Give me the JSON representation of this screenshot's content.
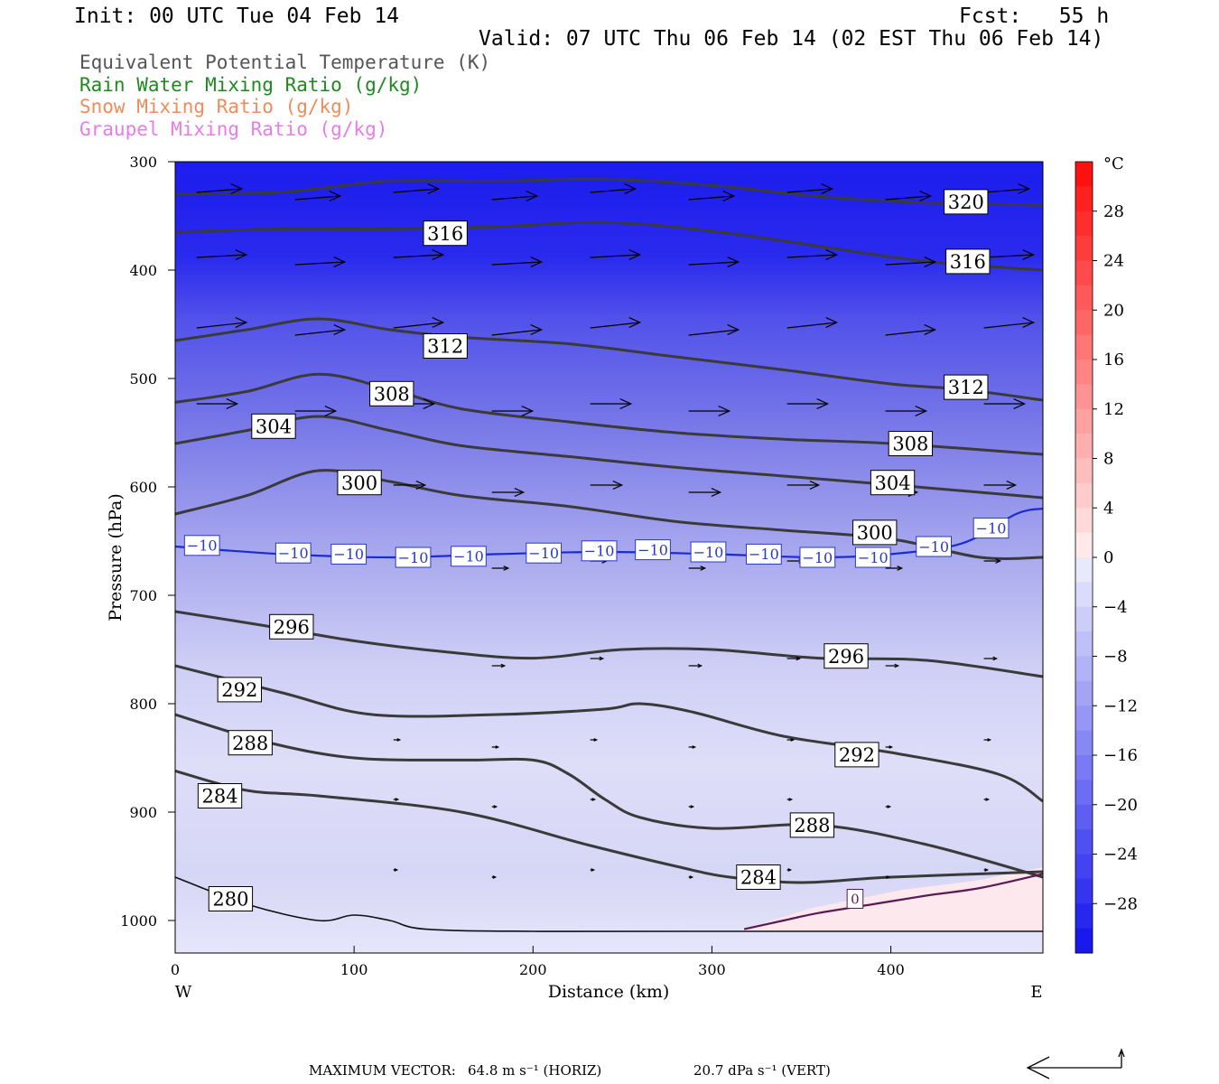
{
  "header": {
    "init": "Init: 00 UTC Tue 04 Feb 14",
    "fcst": "Fcst:   55 h",
    "valid": "Valid: 07 UTC Thu 06 Feb 14 (02 EST Thu 06 Feb 14)"
  },
  "legend": {
    "items": [
      {
        "text": "Equivalent Potential Temperature (K)",
        "color": "#555555"
      },
      {
        "text": "Rain Water Mixing Ratio (g/kg)",
        "color": "#1e8a1e"
      },
      {
        "text": "Snow Mixing Ratio (g/kg)",
        "color": "#f08c5a"
      },
      {
        "text": "Graupel Mixing Ratio (g/kg)",
        "color": "#e87ce8"
      }
    ]
  },
  "footer": {
    "max_vector_label": "MAXIMUM VECTOR:",
    "horiz": "64.8 m s⁻¹ (HORIZ)",
    "vert": "20.7 dPa s⁻¹ (VERT)"
  },
  "chart_data": {
    "type": "contour cross-section",
    "xlabel": "Distance (km)",
    "ylabel": "Pressure (hPa)",
    "xlim": [
      0,
      485
    ],
    "ylim": [
      1030,
      300
    ],
    "x_ticks": [
      0,
      100,
      200,
      300,
      400
    ],
    "y_ticks": [
      300,
      400,
      500,
      600,
      700,
      800,
      900,
      1000
    ],
    "x_left_label": "W",
    "x_right_label": "E",
    "colorbar": {
      "unit": "°C",
      "tick_values": [
        28,
        24,
        20,
        16,
        12,
        8,
        4,
        0,
        -4,
        -8,
        -12,
        -16,
        -20,
        -24,
        -28
      ],
      "tick_labels": [
        "28",
        "24",
        "20",
        "16",
        "12",
        "8",
        "4",
        "0",
        "−4",
        "−8",
        "−12",
        "−16",
        "−20",
        "−24",
        "−28"
      ],
      "range": [
        -32,
        32
      ]
    },
    "theta_e_contours": [
      {
        "value": 320,
        "label": "320",
        "points": [
          [
            0,
            330
          ],
          [
            60,
            328
          ],
          [
            120,
            318
          ],
          [
            180,
            318
          ],
          [
            240,
            316
          ],
          [
            300,
            322
          ],
          [
            360,
            332
          ],
          [
            420,
            338
          ],
          [
            485,
            340
          ]
        ],
        "labels_at": [
          [
            442,
            337
          ]
        ]
      },
      {
        "value": 316,
        "label": "316",
        "points": [
          [
            0,
            365
          ],
          [
            60,
            362
          ],
          [
            120,
            362
          ],
          [
            180,
            360
          ],
          [
            240,
            356
          ],
          [
            300,
            364
          ],
          [
            360,
            378
          ],
          [
            420,
            392
          ],
          [
            485,
            400
          ]
        ],
        "labels_at": [
          [
            151,
            366
          ],
          [
            443,
            392
          ]
        ]
      },
      {
        "value": 312,
        "label": "312",
        "points": [
          [
            0,
            465
          ],
          [
            40,
            455
          ],
          [
            80,
            445
          ],
          [
            120,
            455
          ],
          [
            160,
            462
          ],
          [
            220,
            468
          ],
          [
            280,
            480
          ],
          [
            340,
            492
          ],
          [
            400,
            505
          ],
          [
            440,
            510
          ],
          [
            485,
            520
          ]
        ],
        "labels_at": [
          [
            151,
            470
          ],
          [
            442,
            508
          ]
        ]
      },
      {
        "value": 308,
        "label": "308",
        "points": [
          [
            0,
            522
          ],
          [
            40,
            512
          ],
          [
            80,
            496
          ],
          [
            120,
            510
          ],
          [
            160,
            528
          ],
          [
            220,
            540
          ],
          [
            280,
            550
          ],
          [
            340,
            556
          ],
          [
            400,
            560
          ],
          [
            485,
            570
          ]
        ],
        "labels_at": [
          [
            121,
            514
          ],
          [
            411,
            560
          ]
        ]
      },
      {
        "value": 304,
        "label": "304",
        "points": [
          [
            0,
            560
          ],
          [
            40,
            548
          ],
          [
            80,
            535
          ],
          [
            120,
            548
          ],
          [
            160,
            562
          ],
          [
            220,
            572
          ],
          [
            280,
            582
          ],
          [
            340,
            590
          ],
          [
            400,
            598
          ],
          [
            450,
            605
          ],
          [
            485,
            610
          ]
        ],
        "labels_at": [
          [
            55,
            544
          ],
          [
            401,
            596
          ]
        ]
      },
      {
        "value": 300,
        "label": "300",
        "points": [
          [
            0,
            625
          ],
          [
            40,
            608
          ],
          [
            80,
            585
          ],
          [
            120,
            595
          ],
          [
            160,
            608
          ],
          [
            220,
            618
          ],
          [
            280,
            632
          ],
          [
            340,
            640
          ],
          [
            400,
            648
          ],
          [
            450,
            665
          ],
          [
            485,
            665
          ]
        ],
        "labels_at": [
          [
            103,
            596
          ],
          [
            391,
            642
          ]
        ]
      },
      {
        "value": 296,
        "label": "296",
        "points": [
          [
            0,
            715
          ],
          [
            50,
            728
          ],
          [
            100,
            742
          ],
          [
            150,
            752
          ],
          [
            200,
            758
          ],
          [
            250,
            750
          ],
          [
            300,
            750
          ],
          [
            360,
            758
          ],
          [
            420,
            760
          ],
          [
            485,
            775
          ]
        ],
        "labels_at": [
          [
            65,
            729
          ],
          [
            375,
            756
          ]
        ]
      },
      {
        "value": 292,
        "label": "292",
        "points": [
          [
            0,
            765
          ],
          [
            60,
            790
          ],
          [
            110,
            810
          ],
          [
            180,
            810
          ],
          [
            240,
            805
          ],
          [
            260,
            800
          ],
          [
            290,
            808
          ],
          [
            340,
            830
          ],
          [
            400,
            845
          ],
          [
            460,
            865
          ],
          [
            485,
            890
          ]
        ],
        "labels_at": [
          [
            36,
            787
          ],
          [
            381,
            847
          ]
        ]
      },
      {
        "value": 288,
        "label": "288",
        "points": [
          [
            0,
            810
          ],
          [
            50,
            835
          ],
          [
            100,
            850
          ],
          [
            160,
            852
          ],
          [
            200,
            852
          ],
          [
            220,
            865
          ],
          [
            240,
            888
          ],
          [
            260,
            905
          ],
          [
            300,
            915
          ],
          [
            360,
            912
          ],
          [
            420,
            930
          ],
          [
            485,
            960
          ]
        ],
        "labels_at": [
          [
            42,
            836
          ],
          [
            356,
            912
          ]
        ]
      },
      {
        "value": 284,
        "label": "284",
        "points": [
          [
            0,
            862
          ],
          [
            40,
            880
          ],
          [
            80,
            885
          ],
          [
            160,
            900
          ],
          [
            230,
            930
          ],
          [
            280,
            950
          ],
          [
            310,
            960
          ],
          [
            350,
            965
          ],
          [
            400,
            960
          ],
          [
            485,
            955
          ]
        ],
        "labels_at": [
          [
            25,
            885
          ],
          [
            326,
            960
          ]
        ]
      },
      {
        "value": 280,
        "label": "280",
        "points": [
          [
            0,
            960
          ],
          [
            40,
            985
          ],
          [
            80,
            1000
          ],
          [
            100,
            995
          ],
          [
            120,
            1000
          ],
          [
            140,
            1008
          ],
          [
            200,
            1010
          ],
          [
            300,
            1010
          ],
          [
            485,
            1010
          ]
        ],
        "labels_at": [
          [
            31,
            980
          ]
        ]
      }
    ],
    "temp_minus10_contour": {
      "value": -10,
      "label": "−10",
      "points": [
        [
          0,
          655
        ],
        [
          60,
          662
        ],
        [
          120,
          665
        ],
        [
          180,
          662
        ],
        [
          240,
          660
        ],
        [
          300,
          662
        ],
        [
          360,
          665
        ],
        [
          400,
          662
        ],
        [
          440,
          652
        ],
        [
          470,
          625
        ],
        [
          485,
          620
        ]
      ],
      "labels_at": [
        [
          15,
          654
        ],
        [
          66,
          661
        ],
        [
          97,
          662
        ],
        [
          133,
          665
        ],
        [
          164,
          664
        ],
        [
          206,
          661
        ],
        [
          237,
          659
        ],
        [
          267,
          658
        ],
        [
          298,
          660
        ],
        [
          329,
          662
        ],
        [
          359,
          665
        ],
        [
          390,
          665
        ],
        [
          424,
          655
        ],
        [
          456,
          638
        ]
      ]
    },
    "temp_zero_contour": {
      "value": 0,
      "label": "0",
      "points": [
        [
          318,
          1008
        ],
        [
          340,
          1000
        ],
        [
          360,
          993
        ],
        [
          390,
          985
        ],
        [
          420,
          977
        ],
        [
          450,
          970
        ],
        [
          485,
          957
        ]
      ],
      "labels_at": [
        [
          380,
          980
        ]
      ]
    }
  }
}
